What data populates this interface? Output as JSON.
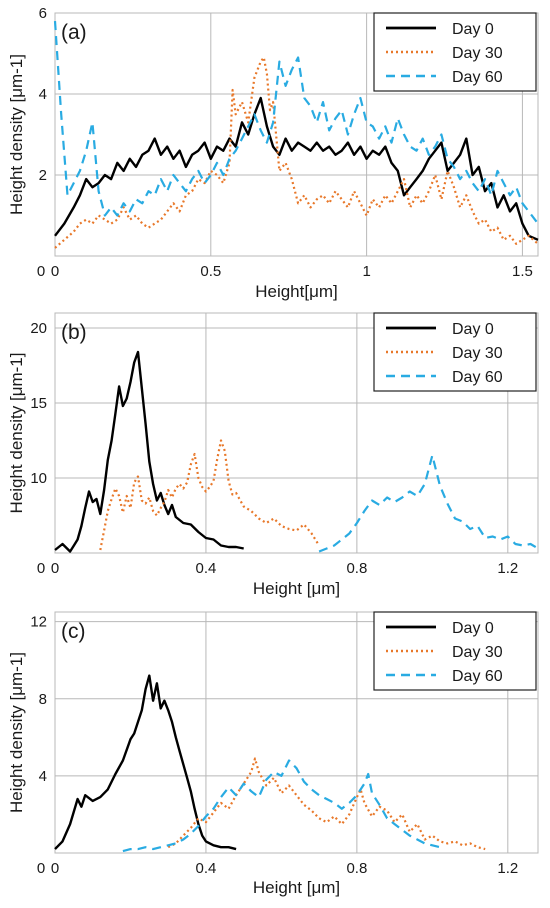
{
  "chart_data": [
    {
      "type": "line",
      "panel_label": "(a)",
      "xlabel": "Height[μm]",
      "ylabel": "Height density [μm-1]",
      "xlim": [
        0,
        1.55
      ],
      "ylim": [
        0,
        6
      ],
      "xticks": [
        0,
        0.5,
        1,
        1.5
      ],
      "xtick_labels": [
        "0",
        "0.5",
        "1",
        "1.5"
      ],
      "yticks": [
        2,
        4,
        6
      ],
      "ytick_labels": [
        "2",
        "4",
        "6"
      ],
      "grid": true,
      "legend_position": "top-right",
      "series": [
        {
          "name": "Day 0",
          "color": "#000000",
          "style": "solid",
          "x": [
            0,
            0.03,
            0.06,
            0.08,
            0.1,
            0.12,
            0.14,
            0.16,
            0.18,
            0.2,
            0.22,
            0.24,
            0.26,
            0.28,
            0.3,
            0.32,
            0.34,
            0.36,
            0.38,
            0.4,
            0.42,
            0.44,
            0.46,
            0.48,
            0.5,
            0.52,
            0.54,
            0.56,
            0.58,
            0.6,
            0.62,
            0.64,
            0.66,
            0.68,
            0.7,
            0.72,
            0.74,
            0.76,
            0.78,
            0.8,
            0.82,
            0.84,
            0.86,
            0.88,
            0.9,
            0.92,
            0.94,
            0.96,
            0.98,
            1.0,
            1.02,
            1.04,
            1.06,
            1.08,
            1.1,
            1.12,
            1.14,
            1.16,
            1.18,
            1.2,
            1.22,
            1.24,
            1.26,
            1.28,
            1.3,
            1.32,
            1.34,
            1.36,
            1.38,
            1.4,
            1.42,
            1.44,
            1.46,
            1.48,
            1.5,
            1.52,
            1.55
          ],
          "y": [
            0.5,
            0.8,
            1.2,
            1.5,
            1.9,
            1.7,
            1.8,
            2.0,
            1.9,
            2.3,
            2.1,
            2.4,
            2.2,
            2.5,
            2.6,
            2.9,
            2.5,
            2.7,
            2.4,
            2.6,
            2.2,
            2.5,
            2.6,
            2.8,
            2.4,
            2.7,
            2.6,
            2.9,
            2.7,
            3.3,
            3.0,
            3.5,
            3.9,
            3.2,
            2.7,
            2.5,
            2.9,
            2.6,
            2.8,
            2.7,
            2.6,
            2.8,
            2.6,
            2.7,
            2.5,
            2.6,
            2.8,
            2.5,
            2.7,
            2.4,
            2.6,
            2.5,
            2.7,
            2.3,
            2.1,
            1.5,
            1.7,
            1.9,
            2.1,
            2.4,
            2.6,
            2.8,
            2.1,
            2.3,
            2.5,
            2.9,
            2.0,
            2.2,
            1.6,
            1.8,
            1.2,
            1.5,
            1.1,
            1.3,
            0.8,
            0.5,
            0.4
          ]
        },
        {
          "name": "Day 30",
          "color": "#e8782a",
          "style": "dotted",
          "x": [
            0,
            0.03,
            0.06,
            0.08,
            0.1,
            0.12,
            0.14,
            0.16,
            0.18,
            0.2,
            0.22,
            0.24,
            0.26,
            0.28,
            0.3,
            0.32,
            0.34,
            0.36,
            0.38,
            0.4,
            0.42,
            0.44,
            0.46,
            0.48,
            0.5,
            0.52,
            0.54,
            0.56,
            0.57,
            0.58,
            0.6,
            0.62,
            0.64,
            0.66,
            0.67,
            0.68,
            0.69,
            0.7,
            0.72,
            0.74,
            0.76,
            0.78,
            0.8,
            0.82,
            0.84,
            0.86,
            0.88,
            0.9,
            0.92,
            0.94,
            0.96,
            0.98,
            1.0,
            1.02,
            1.04,
            1.06,
            1.08,
            1.1,
            1.12,
            1.14,
            1.16,
            1.18,
            1.2,
            1.22,
            1.24,
            1.26,
            1.28,
            1.3,
            1.32,
            1.34,
            1.36,
            1.38,
            1.4,
            1.42,
            1.44,
            1.46,
            1.48,
            1.5,
            1.52,
            1.55
          ],
          "y": [
            0.2,
            0.4,
            0.6,
            0.8,
            0.9,
            0.8,
            1.0,
            0.9,
            0.8,
            0.9,
            1.2,
            0.9,
            1.0,
            0.8,
            0.7,
            0.8,
            0.9,
            1.1,
            1.3,
            1.1,
            1.5,
            1.6,
            1.9,
            1.8,
            2.1,
            2.0,
            1.8,
            2.3,
            4.1,
            3.5,
            3.8,
            3.3,
            4.4,
            4.8,
            4.9,
            4.5,
            3.6,
            3.8,
            2.1,
            2.3,
            1.9,
            1.3,
            1.5,
            1.2,
            1.4,
            1.5,
            1.3,
            1.6,
            1.4,
            1.2,
            1.6,
            1.3,
            1.0,
            1.4,
            1.2,
            1.5,
            1.3,
            1.6,
            1.9,
            1.2,
            1.5,
            1.3,
            1.6,
            2.0,
            1.4,
            2.1,
            1.7,
            1.2,
            1.5,
            1.1,
            0.8,
            0.9,
            0.6,
            0.7,
            0.4,
            0.5,
            0.3,
            0.4,
            0.5,
            0.3
          ]
        },
        {
          "name": "Day 60",
          "color": "#29abe2",
          "style": "dashed",
          "x": [
            0,
            0.02,
            0.04,
            0.06,
            0.08,
            0.1,
            0.12,
            0.14,
            0.16,
            0.18,
            0.2,
            0.22,
            0.24,
            0.26,
            0.28,
            0.3,
            0.32,
            0.34,
            0.36,
            0.38,
            0.4,
            0.42,
            0.44,
            0.46,
            0.48,
            0.5,
            0.52,
            0.54,
            0.56,
            0.58,
            0.6,
            0.62,
            0.64,
            0.66,
            0.68,
            0.7,
            0.72,
            0.74,
            0.76,
            0.78,
            0.8,
            0.82,
            0.84,
            0.86,
            0.88,
            0.9,
            0.92,
            0.94,
            0.96,
            0.98,
            1.0,
            1.02,
            1.04,
            1.06,
            1.08,
            1.1,
            1.12,
            1.14,
            1.16,
            1.18,
            1.2,
            1.22,
            1.24,
            1.26,
            1.28,
            1.3,
            1.32,
            1.34,
            1.36,
            1.38,
            1.4,
            1.42,
            1.44,
            1.46,
            1.48,
            1.5,
            1.52,
            1.55
          ],
          "y": [
            5.8,
            3.5,
            1.5,
            1.8,
            2.1,
            2.6,
            3.3,
            1.6,
            1.0,
            1.2,
            1.0,
            1.3,
            1.1,
            1.4,
            1.3,
            1.6,
            1.5,
            1.9,
            1.6,
            2.0,
            1.8,
            1.6,
            1.9,
            2.1,
            1.8,
            2.0,
            2.3,
            2.0,
            2.4,
            2.6,
            2.9,
            3.2,
            3.5,
            3.1,
            2.8,
            3.3,
            4.8,
            4.2,
            4.6,
            4.9,
            3.9,
            3.7,
            3.3,
            3.8,
            3.1,
            3.4,
            3.6,
            3.0,
            3.5,
            3.9,
            3.3,
            3.2,
            2.9,
            3.2,
            2.8,
            3.4,
            3.0,
            2.7,
            2.6,
            2.9,
            2.5,
            2.7,
            3.0,
            2.4,
            2.2,
            1.9,
            2.1,
            1.8,
            1.6,
            1.9,
            1.5,
            2.1,
            1.8,
            1.5,
            1.7,
            1.3,
            1.1,
            0.8
          ]
        }
      ]
    },
    {
      "type": "line",
      "panel_label": "(b)",
      "xlabel": "Height [μm]",
      "ylabel": "Height density [μm-1]",
      "xlim": [
        0,
        1.28
      ],
      "ylim": [
        5,
        21
      ],
      "xticks": [
        0,
        0.4,
        0.8,
        1.2
      ],
      "xtick_labels": [
        "0",
        "0.4",
        "0.8",
        "1.2"
      ],
      "yticks": [
        10,
        15,
        20
      ],
      "ytick_labels": [
        "10",
        "15",
        "20"
      ],
      "grid": true,
      "legend_position": "top-right",
      "series": [
        {
          "name": "Day 0",
          "color": "#000000",
          "style": "solid",
          "x": [
            0,
            0.02,
            0.04,
            0.05,
            0.06,
            0.07,
            0.08,
            0.09,
            0.1,
            0.11,
            0.12,
            0.13,
            0.14,
            0.15,
            0.16,
            0.17,
            0.18,
            0.19,
            0.2,
            0.21,
            0.22,
            0.23,
            0.24,
            0.25,
            0.26,
            0.27,
            0.28,
            0.29,
            0.3,
            0.31,
            0.32,
            0.34,
            0.36,
            0.38,
            0.4,
            0.42,
            0.44,
            0.46,
            0.48,
            0.5
          ],
          "y": [
            5.2,
            5.6,
            5.1,
            5.5,
            5.9,
            6.8,
            8.0,
            9.1,
            8.4,
            8.6,
            7.6,
            9.2,
            11.2,
            12.5,
            14.3,
            16.1,
            14.8,
            15.3,
            16.4,
            17.7,
            18.4,
            16.0,
            13.6,
            11.1,
            9.6,
            8.5,
            9.0,
            8.2,
            7.6,
            8.2,
            7.4,
            7.0,
            6.9,
            6.4,
            6.0,
            5.9,
            5.5,
            5.4,
            5.4,
            5.3
          ]
        },
        {
          "name": "Day 30",
          "color": "#e8782a",
          "style": "dotted",
          "x": [
            0.12,
            0.13,
            0.14,
            0.15,
            0.16,
            0.17,
            0.18,
            0.19,
            0.2,
            0.21,
            0.22,
            0.23,
            0.24,
            0.25,
            0.26,
            0.27,
            0.28,
            0.29,
            0.3,
            0.31,
            0.32,
            0.33,
            0.34,
            0.35,
            0.36,
            0.37,
            0.38,
            0.39,
            0.4,
            0.41,
            0.42,
            0.43,
            0.44,
            0.45,
            0.46,
            0.47,
            0.48,
            0.5,
            0.52,
            0.54,
            0.56,
            0.58,
            0.6,
            0.62,
            0.64,
            0.66,
            0.68,
            0.7
          ],
          "y": [
            5.2,
            6.5,
            7.8,
            8.6,
            9.3,
            8.8,
            7.7,
            8.8,
            8.0,
            9.7,
            10.1,
            8.5,
            8.3,
            8.7,
            7.8,
            7.5,
            8.0,
            8.4,
            9.2,
            8.7,
            9.3,
            9.6,
            9.3,
            9.7,
            10.9,
            11.6,
            10.0,
            9.4,
            9.1,
            9.4,
            9.8,
            11.3,
            12.5,
            11.8,
            9.8,
            8.9,
            9.0,
            8.1,
            7.8,
            7.3,
            7.0,
            7.3,
            6.8,
            6.6,
            6.5,
            6.9,
            6.3,
            5.5
          ]
        },
        {
          "name": "Day 60",
          "color": "#29abe2",
          "style": "dashed",
          "x": [
            0.7,
            0.72,
            0.74,
            0.76,
            0.78,
            0.8,
            0.82,
            0.84,
            0.86,
            0.88,
            0.9,
            0.92,
            0.94,
            0.96,
            0.98,
            1.0,
            1.02,
            1.04,
            1.06,
            1.08,
            1.1,
            1.12,
            1.14,
            1.16,
            1.18,
            1.2,
            1.22,
            1.24,
            1.26,
            1.28
          ],
          "y": [
            5.1,
            5.3,
            5.5,
            5.9,
            6.3,
            7.0,
            7.8,
            8.5,
            8.2,
            8.7,
            8.4,
            8.7,
            9.1,
            8.8,
            9.6,
            11.5,
            9.5,
            8.3,
            7.3,
            7.1,
            6.6,
            6.8,
            6.0,
            6.1,
            5.9,
            6.1,
            5.6,
            5.5,
            5.6,
            5.3
          ]
        }
      ]
    },
    {
      "type": "line",
      "panel_label": "(c)",
      "xlabel": "Height [μm]",
      "ylabel": "Height density [μm-1]",
      "xlim": [
        0,
        1.28
      ],
      "ylim": [
        0,
        12.5
      ],
      "xticks": [
        0,
        0.4,
        0.8,
        1.2
      ],
      "xtick_labels": [
        "0",
        "0.4",
        "0.8",
        "1.2"
      ],
      "yticks": [
        4,
        8,
        12
      ],
      "ytick_labels": [
        "4",
        "8",
        "12"
      ],
      "grid": true,
      "legend_position": "top-right",
      "series": [
        {
          "name": "Day 0",
          "color": "#000000",
          "style": "solid",
          "x": [
            0,
            0.02,
            0.04,
            0.06,
            0.07,
            0.08,
            0.1,
            0.12,
            0.14,
            0.16,
            0.18,
            0.2,
            0.21,
            0.22,
            0.23,
            0.24,
            0.25,
            0.26,
            0.27,
            0.28,
            0.29,
            0.3,
            0.31,
            0.32,
            0.33,
            0.34,
            0.35,
            0.36,
            0.37,
            0.38,
            0.39,
            0.4,
            0.42,
            0.44,
            0.46,
            0.48
          ],
          "y": [
            0.2,
            0.6,
            1.5,
            2.8,
            2.4,
            3.0,
            2.7,
            2.9,
            3.3,
            4.1,
            4.8,
            5.9,
            6.2,
            6.8,
            7.4,
            8.5,
            9.2,
            7.9,
            8.8,
            7.5,
            7.9,
            7.4,
            6.8,
            6.0,
            5.3,
            4.6,
            3.9,
            3.2,
            2.3,
            1.5,
            0.9,
            0.6,
            0.4,
            0.3,
            0.3,
            0.2
          ]
        },
        {
          "name": "Day 30",
          "color": "#e8782a",
          "style": "dotted",
          "x": [
            0.3,
            0.32,
            0.34,
            0.36,
            0.38,
            0.4,
            0.42,
            0.44,
            0.46,
            0.48,
            0.5,
            0.52,
            0.53,
            0.54,
            0.56,
            0.58,
            0.6,
            0.62,
            0.64,
            0.66,
            0.68,
            0.7,
            0.72,
            0.74,
            0.76,
            0.78,
            0.8,
            0.81,
            0.82,
            0.84,
            0.86,
            0.88,
            0.9,
            0.92,
            0.94,
            0.96,
            0.98,
            1.0,
            1.02,
            1.04,
            1.06,
            1.08,
            1.1,
            1.12,
            1.14
          ],
          "y": [
            0.3,
            0.5,
            0.9,
            1.3,
            1.8,
            1.6,
            2.1,
            2.6,
            2.3,
            3.0,
            3.6,
            4.2,
            4.9,
            4.2,
            3.5,
            3.9,
            3.1,
            3.5,
            3.0,
            2.5,
            2.2,
            1.8,
            1.6,
            1.9,
            1.5,
            2.0,
            2.9,
            3.3,
            2.6,
            1.9,
            2.4,
            2.2,
            1.6,
            2.0,
            1.1,
            1.5,
            0.7,
            0.9,
            0.6,
            0.5,
            0.6,
            0.4,
            0.5,
            0.3,
            0.2
          ]
        },
        {
          "name": "Day 60",
          "color": "#29abe2",
          "style": "dashed",
          "x": [
            0.18,
            0.2,
            0.22,
            0.24,
            0.26,
            0.28,
            0.3,
            0.32,
            0.34,
            0.36,
            0.38,
            0.4,
            0.42,
            0.44,
            0.46,
            0.48,
            0.5,
            0.52,
            0.54,
            0.56,
            0.58,
            0.6,
            0.62,
            0.64,
            0.66,
            0.68,
            0.7,
            0.72,
            0.74,
            0.76,
            0.78,
            0.8,
            0.82,
            0.83,
            0.84,
            0.86,
            0.88,
            0.9,
            0.92,
            0.94,
            0.96,
            0.98,
            1.0,
            1.02
          ],
          "y": [
            0.1,
            0.2,
            0.2,
            0.3,
            0.2,
            0.3,
            0.4,
            0.5,
            0.7,
            1.0,
            1.4,
            1.9,
            2.3,
            2.9,
            3.4,
            3.0,
            3.6,
            3.2,
            2.9,
            3.8,
            4.2,
            4.0,
            4.8,
            4.4,
            3.7,
            3.3,
            3.0,
            2.8,
            2.6,
            2.3,
            2.6,
            3.0,
            3.6,
            4.1,
            3.1,
            2.5,
            1.8,
            1.5,
            1.2,
            0.9,
            0.7,
            0.5,
            0.4,
            0.3
          ]
        }
      ]
    }
  ]
}
